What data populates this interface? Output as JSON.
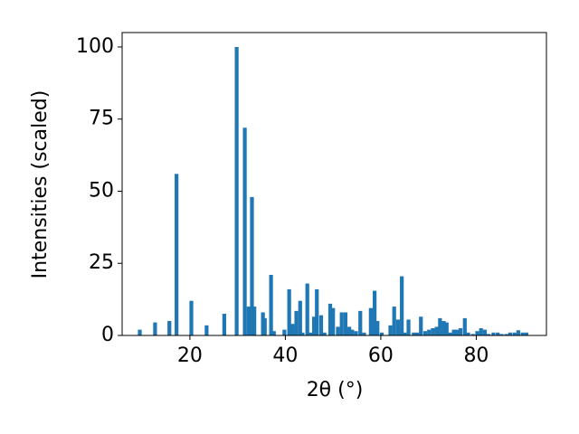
{
  "chart_data": {
    "type": "bar",
    "x_label": "2θ (°)",
    "y_label": "Intensities (scaled)",
    "x": [
      9.5,
      12.7,
      15.7,
      17.2,
      20.3,
      23.5,
      27.2,
      29.8,
      31.5,
      32.3,
      33.0,
      33.5,
      35.3,
      35.7,
      37.0,
      37.6,
      39.8,
      40.8,
      41.5,
      42.3,
      43.1,
      43.6,
      44.6,
      45.2,
      46.0,
      46.6,
      47.5,
      48.2,
      49.4,
      50.0,
      51.0,
      51.8,
      52.6,
      53.4,
      54.0,
      54.8,
      55.7,
      56.5,
      57.9,
      58.7,
      59.3,
      60.2,
      62.0,
      62.8,
      63.6,
      64.4,
      65.0,
      65.8,
      66.9,
      67.6,
      68.4,
      69.3,
      70.1,
      70.9,
      71.7,
      72.4,
      73.2,
      73.8,
      74.5,
      75.3,
      76.0,
      76.7,
      77.6,
      78.3,
      79.3,
      80.2,
      81.0,
      81.8,
      82.6,
      83.6,
      84.5,
      85.3,
      86.3,
      87.1,
      88.0,
      88.8,
      89.7,
      90.5
    ],
    "values": [
      2,
      4.5,
      5,
      56,
      12,
      3.5,
      7.5,
      100,
      72,
      10,
      48,
      10,
      8,
      6,
      21,
      1.5,
      2,
      16,
      4,
      8.5,
      12,
      1,
      18,
      1,
      6.5,
      16,
      7,
      1,
      11,
      9.5,
      3,
      8,
      8,
      3,
      2,
      1.5,
      8.5,
      1,
      9.5,
      15.5,
      5,
      1,
      3.5,
      10,
      5.5,
      20.5,
      1,
      5.5,
      1,
      1,
      6.5,
      1.5,
      2,
      2.5,
      3,
      6,
      5,
      4.5,
      1,
      2,
      2,
      2.5,
      6,
      1,
      0.5,
      1.5,
      2.5,
      2,
      0.5,
      1,
      1,
      0.5,
      0.5,
      1,
      1,
      1.8,
      1,
      1
    ],
    "color": "#1f77b4",
    "xlim": [
      5.8,
      94.7
    ],
    "ylim": [
      0,
      105
    ],
    "xticks": [
      20,
      40,
      60,
      80
    ],
    "yticks": [
      0,
      25,
      50,
      75,
      100
    ]
  }
}
